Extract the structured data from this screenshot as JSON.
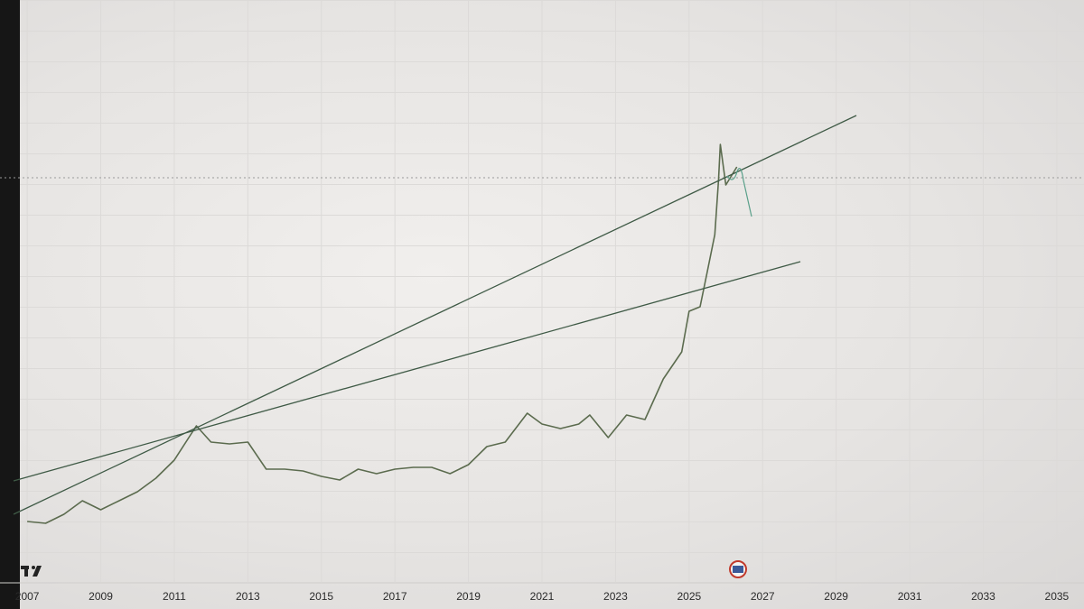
{
  "chart_data": {
    "type": "line",
    "x": [
      2007.0,
      2007.5,
      2008.0,
      2008.5,
      2009.0,
      2009.5,
      2010.0,
      2010.5,
      2011.0,
      2011.6,
      2012.0,
      2012.5,
      2013.0,
      2013.5,
      2014.0,
      2014.5,
      2015.0,
      2015.5,
      2016.0,
      2016.5,
      2017.0,
      2017.5,
      2018.0,
      2018.5,
      2019.0,
      2019.5,
      2020.0,
      2020.6,
      2021.0,
      2021.5,
      2022.0,
      2022.3,
      2022.8,
      2023.3,
      2023.8,
      2024.3,
      2024.8,
      2025.0,
      2025.3,
      2025.5,
      2025.7,
      2025.8,
      2025.85,
      2026.0,
      2026.3
    ],
    "values": [
      67,
      65,
      75,
      90,
      80,
      90,
      100,
      115,
      135,
      173,
      155,
      153,
      155,
      125,
      125,
      123,
      117,
      113,
      125,
      120,
      125,
      127,
      127,
      120,
      130,
      150,
      155,
      187,
      175,
      170,
      175,
      185,
      160,
      185,
      180,
      225,
      255,
      300,
      305,
      345,
      385,
      445,
      485,
      440,
      460
    ],
    "color": "#5b6b4e",
    "xlim": [
      2006.26,
      2035.74
    ],
    "ylim": [
      0,
      645
    ],
    "xticks": [
      2007,
      2009,
      2011,
      2013,
      2015,
      2017,
      2019,
      2021,
      2023,
      2025,
      2027,
      2029,
      2031,
      2033,
      2035
    ],
    "grid": true
  }
}
